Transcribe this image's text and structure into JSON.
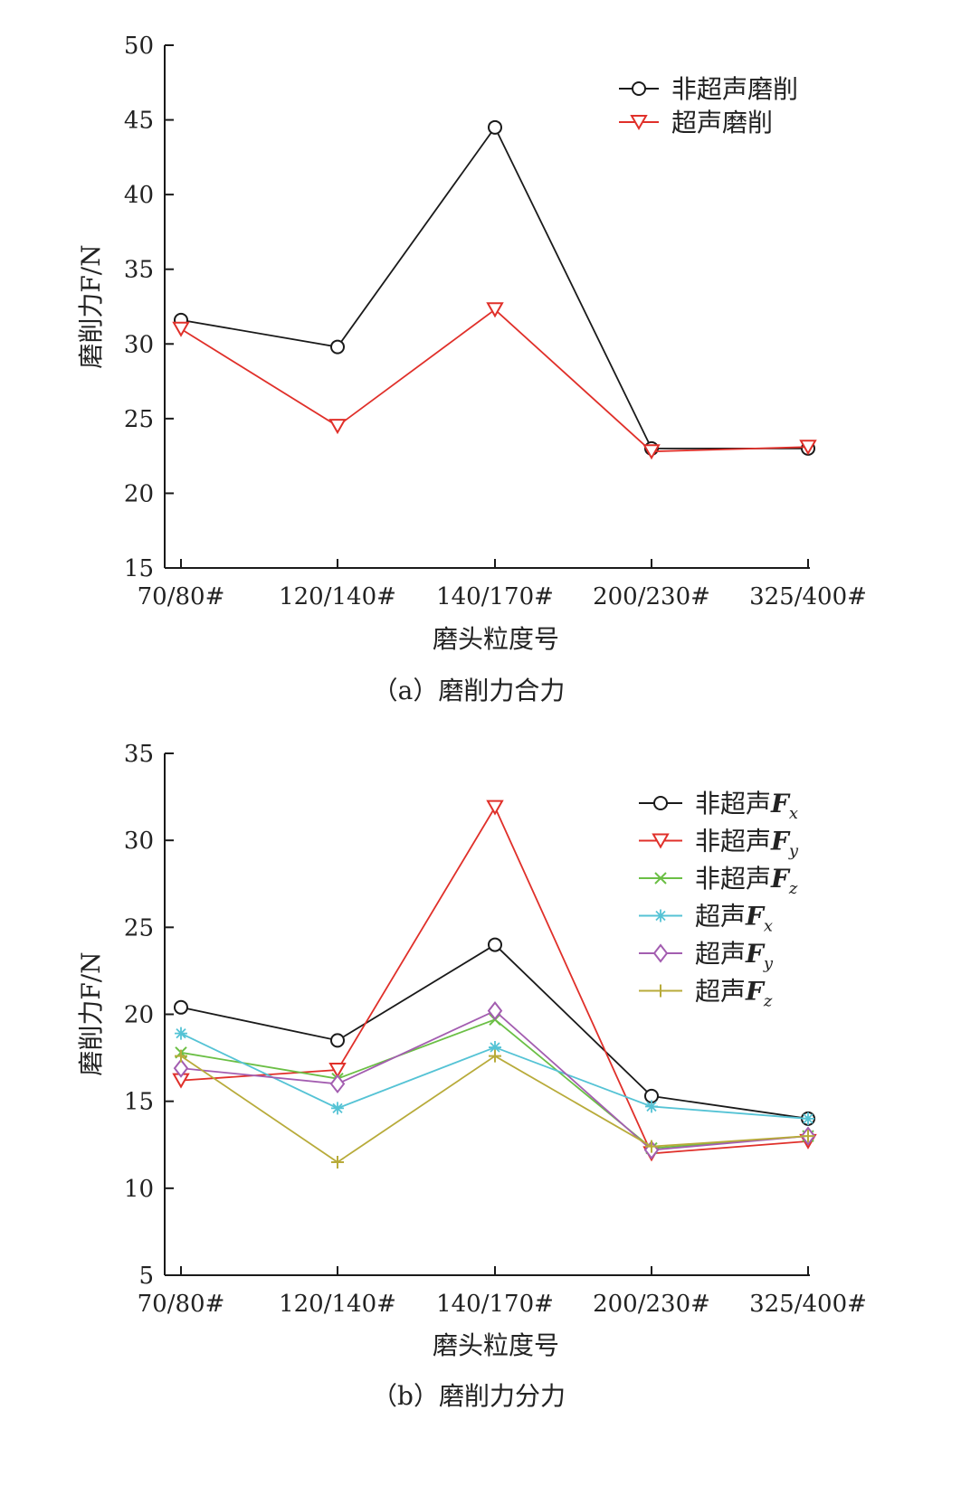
{
  "colors": {
    "black": "#1a1a1a",
    "red": "#e0302a",
    "green": "#6bbf45",
    "cyan": "#55c3d5",
    "purple": "#a35db0",
    "olive": "#b8ab3a",
    "axis": "#1a1a1a"
  },
  "chart_data": [
    {
      "type": "line",
      "categories": [
        "70/80#",
        "120/140#",
        "140/170#",
        "200/230#",
        "325/400#"
      ],
      "ylim": [
        15,
        50
      ],
      "yticks": [
        "15",
        "20",
        "25",
        "30",
        "35",
        "40",
        "45",
        "50"
      ],
      "xlabel": "磨头粒度号",
      "ylabel": "磨削力F/N",
      "caption": "（a）磨削力合力",
      "legend_position": "top-right",
      "grid": false,
      "series": [
        {
          "name": "非超声磨削",
          "values": [
            31.6,
            29.8,
            44.5,
            23.0,
            23.0
          ],
          "color": "#1a1a1a",
          "marker": "circle"
        },
        {
          "name": "超声磨削",
          "values": [
            31.0,
            24.5,
            32.3,
            22.8,
            23.1
          ],
          "color": "#e0302a",
          "marker": "triangle-down"
        }
      ]
    },
    {
      "type": "line",
      "categories": [
        "70/80#",
        "120/140#",
        "140/170#",
        "200/230#",
        "325/400#"
      ],
      "ylim": [
        5,
        35
      ],
      "yticks": [
        "5",
        "10",
        "15",
        "20",
        "25",
        "30",
        "35"
      ],
      "xlabel": "磨头粒度号",
      "ylabel": "磨削力F/N",
      "caption": "（b）磨削力分力",
      "legend_position": "top-right",
      "grid": false,
      "series": [
        {
          "name": "非超声Fx",
          "prefix": "非超声",
          "sub": "x",
          "values": [
            20.4,
            18.5,
            24.0,
            15.3,
            14.0
          ],
          "color": "#1a1a1a",
          "marker": "circle"
        },
        {
          "name": "非超声Fy",
          "prefix": "非超声",
          "sub": "y",
          "values": [
            16.2,
            16.8,
            31.9,
            12.0,
            12.7
          ],
          "color": "#e0302a",
          "marker": "triangle-down"
        },
        {
          "name": "非超声Fz",
          "prefix": "非超声",
          "sub": "z",
          "values": [
            17.8,
            16.3,
            19.7,
            12.3,
            13.0
          ],
          "color": "#6bbf45",
          "marker": "x"
        },
        {
          "name": "超声Fx",
          "prefix": "超声",
          "sub": "x",
          "values": [
            18.9,
            14.6,
            18.1,
            14.7,
            14.0
          ],
          "color": "#55c3d5",
          "marker": "asterisk"
        },
        {
          "name": "超声Fy",
          "prefix": "超声",
          "sub": "y",
          "values": [
            16.9,
            16.0,
            20.2,
            12.2,
            13.0
          ],
          "color": "#a35db0",
          "marker": "diamond"
        },
        {
          "name": "超声Fz",
          "prefix": "超声",
          "sub": "z",
          "values": [
            17.6,
            11.5,
            17.6,
            12.4,
            13.0
          ],
          "color": "#b8ab3a",
          "marker": "plus"
        }
      ]
    }
  ]
}
